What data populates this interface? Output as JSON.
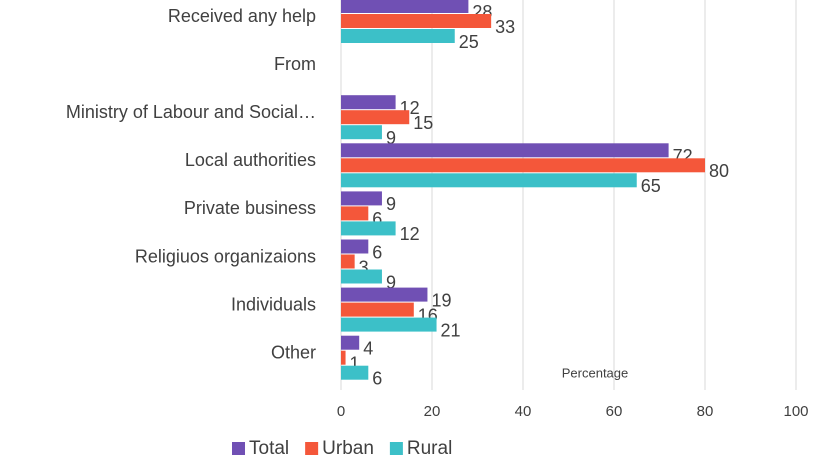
{
  "chart_data": {
    "type": "bar",
    "orientation": "horizontal",
    "x_label": "Percentage",
    "categories": [
      "Received any help",
      "From",
      "Ministry of Labour and Social…",
      "Local authorities",
      "Private business",
      "Religiuos organizaions",
      "Individuals",
      "Other"
    ],
    "series": [
      {
        "name": "Total",
        "color": "#7050b4",
        "values": [
          28,
          null,
          12,
          72,
          9,
          6,
          19,
          4
        ]
      },
      {
        "name": "Urban",
        "color": "#f4573a",
        "values": [
          33,
          null,
          15,
          80,
          6,
          3,
          16,
          1
        ]
      },
      {
        "name": "Rural",
        "color": "#3cc0c8",
        "values": [
          25,
          null,
          9,
          65,
          12,
          9,
          21,
          6
        ]
      }
    ],
    "xlim": [
      0,
      100
    ],
    "xticks": [
      0,
      20,
      40,
      60,
      80,
      100
    ],
    "grid": true,
    "legend": "bottom"
  }
}
